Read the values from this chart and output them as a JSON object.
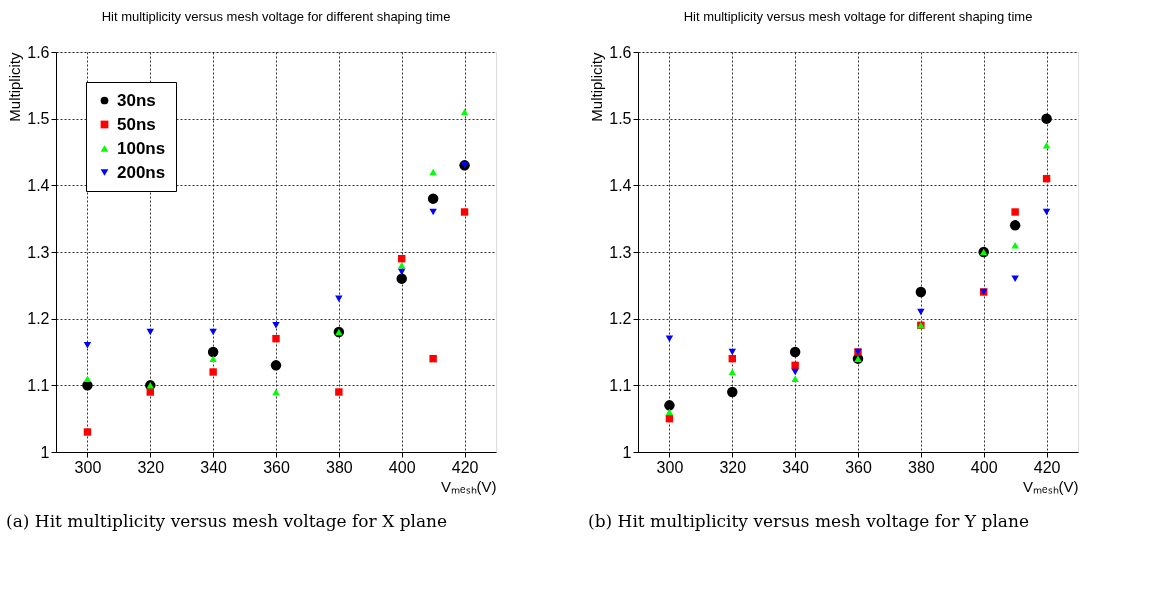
{
  "chart_data": [
    {
      "type": "scatter",
      "title": "Hit multiplicity versus mesh voltage for different shaping time",
      "xlabel": "Vₘₑₛₕ(V)",
      "ylabel": "Multiplicity",
      "x": [
        300,
        320,
        340,
        360,
        380,
        400,
        410,
        420
      ],
      "series": [
        {
          "name": "30ns",
          "color": "#000000",
          "marker": "circle",
          "values": [
            1.1,
            1.1,
            1.15,
            1.13,
            1.18,
            1.26,
            1.38,
            1.43
          ]
        },
        {
          "name": "50ns",
          "color": "#ff0000",
          "marker": "square",
          "values": [
            1.03,
            1.09,
            1.12,
            1.17,
            1.09,
            1.29,
            1.14,
            1.36
          ]
        },
        {
          "name": "100ns",
          "color": "#00ff00",
          "marker": "triangle",
          "values": [
            1.11,
            1.1,
            1.14,
            1.09,
            1.18,
            1.28,
            1.42,
            1.51
          ]
        },
        {
          "name": "200ns",
          "color": "#0000ff",
          "marker": "triangle-down",
          "values": [
            1.16,
            1.18,
            1.18,
            1.19,
            1.23,
            1.27,
            1.36,
            1.43
          ]
        }
      ],
      "xlim": [
        290,
        430
      ],
      "xticks": [
        300,
        320,
        340,
        360,
        380,
        400,
        420
      ],
      "ylim": [
        1,
        1.6
      ],
      "yticks": [
        1,
        1.1,
        1.2,
        1.3,
        1.4,
        1.5,
        1.6
      ],
      "grid": true,
      "legend": "top left",
      "annotations": [
        "(a) Hit multiplicity versus mesh voltage for X plane"
      ]
    },
    {
      "type": "scatter",
      "title": "Hit multiplicity versus mesh voltage for different shaping time",
      "xlabel": "Vₘₑₛₕ(V)",
      "ylabel": "Multiplicity",
      "x": [
        300,
        320,
        340,
        360,
        380,
        400,
        410,
        420
      ],
      "series": [
        {
          "name": "30ns",
          "color": "#000000",
          "marker": "circle",
          "values": [
            1.07,
            1.09,
            1.15,
            1.14,
            1.24,
            1.3,
            1.34,
            1.5
          ]
        },
        {
          "name": "50ns",
          "color": "#ff0000",
          "marker": "square",
          "values": [
            1.05,
            1.14,
            1.13,
            1.15,
            1.19,
            1.24,
            1.36,
            1.41
          ]
        },
        {
          "name": "100ns",
          "color": "#00ff00",
          "marker": "triangle",
          "values": [
            1.06,
            1.12,
            1.11,
            1.14,
            1.19,
            1.3,
            1.31,
            1.46
          ]
        },
        {
          "name": "200ns",
          "color": "#0000ff",
          "marker": "triangle-down",
          "values": [
            1.17,
            1.15,
            1.12,
            1.15,
            1.21,
            1.24,
            1.26,
            1.36
          ]
        }
      ],
      "xlim": [
        290,
        430
      ],
      "xticks": [
        300,
        320,
        340,
        360,
        380,
        400,
        420
      ],
      "ylim": [
        1,
        1.6
      ],
      "yticks": [
        1,
        1.1,
        1.2,
        1.3,
        1.4,
        1.5,
        1.6
      ],
      "grid": true,
      "legend": "top left",
      "annotations": [
        "(b) Hit multiplicity versus mesh voltage for Y plane"
      ]
    }
  ]
}
